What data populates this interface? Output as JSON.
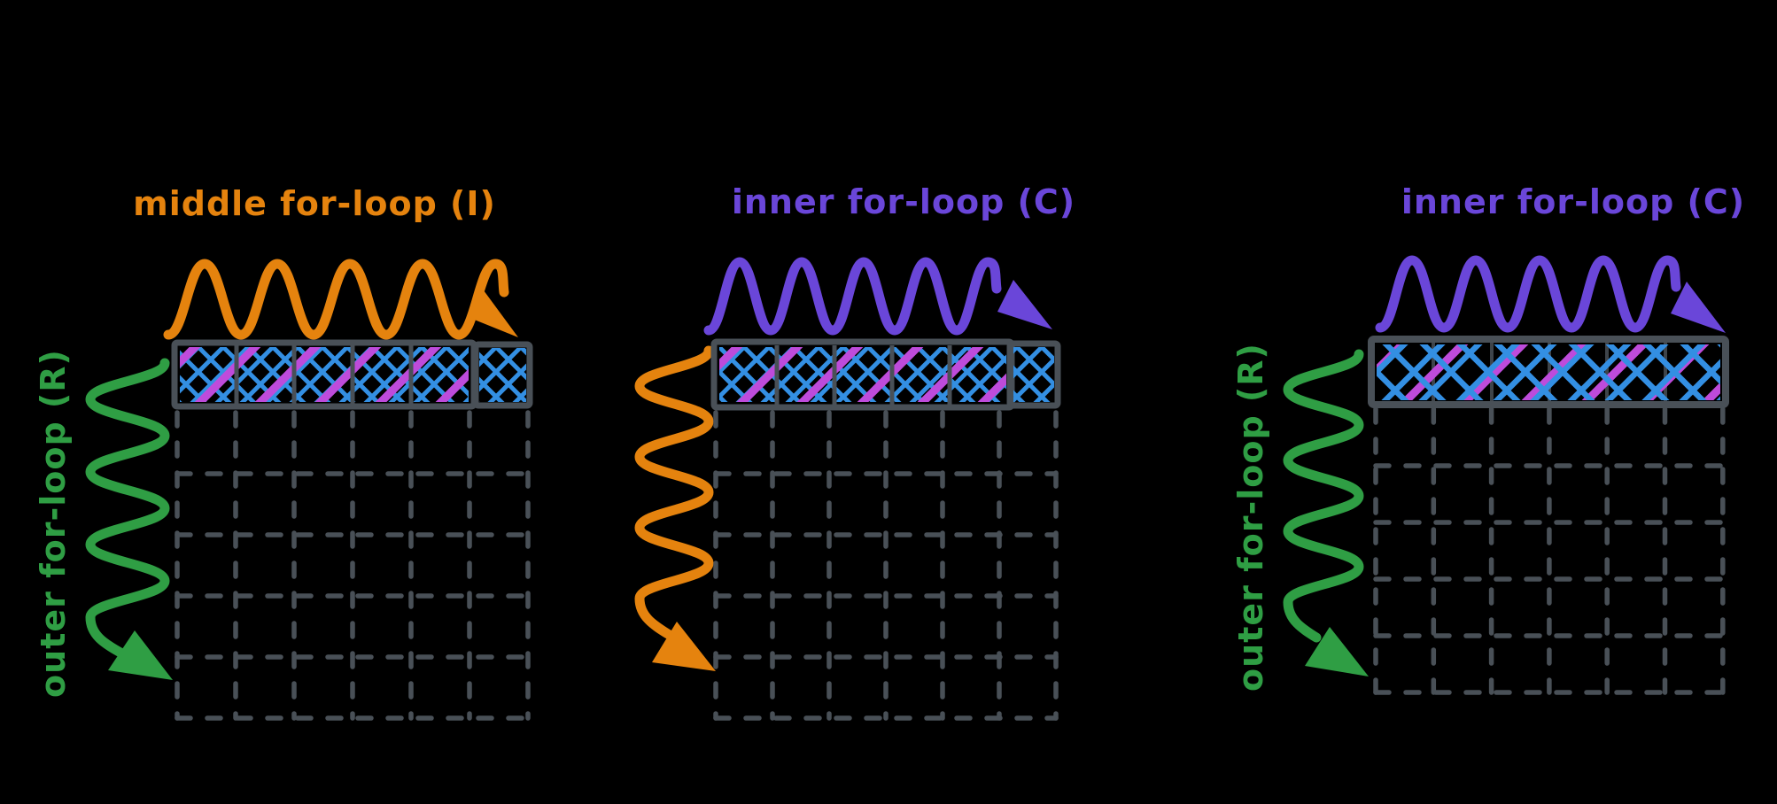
{
  "background": "#000000",
  "colors": {
    "background": "#000000",
    "orange": "#E5830E",
    "green": "#2F9E44",
    "purple": "#6A46D9",
    "blue": "#338FE3",
    "magenta": "#BE4BDB",
    "gray": "#495057"
  },
  "panels": [
    {
      "title": "middle for-loop (I)",
      "title_color": "orange",
      "top_arrow": {
        "color": "orange",
        "direction": "left-to-right",
        "style": "wavy"
      },
      "side_label": "outer for-loop (R)",
      "side_label_color": "green",
      "side_arrow": {
        "color": "green",
        "direction": "top-to-bottom",
        "style": "wavy"
      },
      "matrix": {
        "columns": 6,
        "rows": 6,
        "highlighted_row": 1,
        "highlight": "blue crosshatch + magenta diagonals on first 5 cells; detached last cell blue crosshatch only",
        "grid_style": "dashed gray"
      }
    },
    {
      "title": "inner for-loop (C)",
      "title_color": "purple",
      "top_arrow": {
        "color": "purple",
        "direction": "left-to-right",
        "style": "wavy"
      },
      "side_label": "",
      "side_label_color": "",
      "side_arrow": {
        "color": "orange",
        "direction": "top-to-bottom",
        "style": "wavy"
      },
      "matrix": {
        "columns": 6,
        "rows": 6,
        "highlighted_row": 1,
        "highlight": "blue crosshatch + magenta diagonals on first 5 cells; detached last cell blue crosshatch only",
        "grid_style": "dashed gray"
      }
    },
    {
      "title": "inner for-loop (C)",
      "title_color": "purple",
      "top_arrow": {
        "color": "purple",
        "direction": "left-to-right",
        "style": "wavy"
      },
      "side_label": "outer for-loop (R)",
      "side_label_color": "green",
      "side_arrow": {
        "color": "green",
        "direction": "top-to-bottom",
        "style": "wavy"
      },
      "matrix": {
        "columns": 6,
        "rows": 6,
        "highlighted_row": 1,
        "highlight": "blue crosshatch + magenta diagonals across the whole row",
        "grid_style": "dashed gray"
      }
    }
  ]
}
